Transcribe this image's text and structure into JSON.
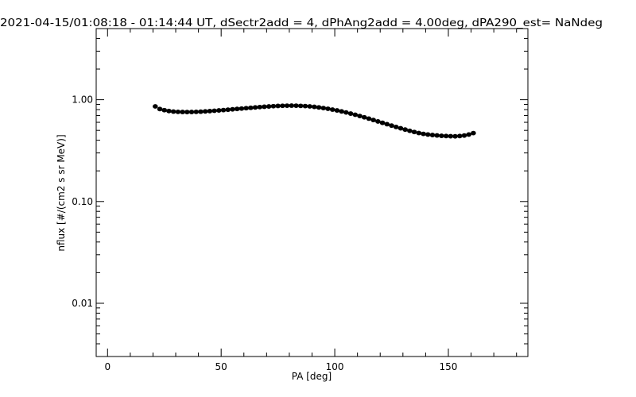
{
  "chart_data": {
    "type": "scatter",
    "title": "2021-04-15/01:08:18 - 01:14:44 UT, dSectr2add = 4, dPhAng2add = 4.00deg, dPA290_est=    NaNdeg",
    "xlabel": "PA [deg]",
    "ylabel": "nflux [#/(cm2 s sr MeV)]",
    "xlim": [
      -5,
      185
    ],
    "ylim": [
      0.003,
      5
    ],
    "y_scale": "log",
    "grid": false,
    "x_ticks": [
      {
        "value": 0,
        "label": "0"
      },
      {
        "value": 50,
        "label": "50"
      },
      {
        "value": 100,
        "label": "100"
      },
      {
        "value": 150,
        "label": "150"
      }
    ],
    "y_ticks": [
      {
        "value": 0.01,
        "label": "0.01"
      },
      {
        "value": 0.1,
        "label": "0.10"
      },
      {
        "value": 1,
        "label": "1.00"
      }
    ],
    "x_minor_step": 10,
    "series": [
      {
        "color": "#000000",
        "x": [
          21,
          23,
          25,
          27,
          29,
          31,
          33,
          35,
          37,
          39,
          41,
          43,
          45,
          47,
          49,
          51,
          53,
          55,
          57,
          59,
          61,
          63,
          65,
          67,
          69,
          71,
          73,
          75,
          77,
          79,
          81,
          83,
          85,
          87,
          89,
          91,
          93,
          95,
          97,
          99,
          101,
          103,
          105,
          107,
          109,
          111,
          113,
          115,
          117,
          119,
          121,
          123,
          125,
          127,
          129,
          131,
          133,
          135,
          137,
          139,
          141,
          143,
          145,
          147,
          149,
          151,
          153,
          155,
          157,
          159,
          161
        ],
        "y": [
          0.86,
          0.81,
          0.79,
          0.775,
          0.765,
          0.76,
          0.758,
          0.757,
          0.758,
          0.76,
          0.763,
          0.768,
          0.773,
          0.779,
          0.785,
          0.791,
          0.798,
          0.805,
          0.812,
          0.819,
          0.826,
          0.833,
          0.84,
          0.847,
          0.853,
          0.859,
          0.864,
          0.869,
          0.872,
          0.874,
          0.875,
          0.874,
          0.87,
          0.866,
          0.86,
          0.851,
          0.84,
          0.828,
          0.815,
          0.8,
          0.785,
          0.768,
          0.75,
          0.731,
          0.712,
          0.692,
          0.672,
          0.652,
          0.632,
          0.612,
          0.593,
          0.575,
          0.557,
          0.54,
          0.524,
          0.509,
          0.495,
          0.482,
          0.471,
          0.462,
          0.455,
          0.45,
          0.446,
          0.442,
          0.44,
          0.438,
          0.437,
          0.44,
          0.445,
          0.455,
          0.47
        ]
      }
    ]
  }
}
